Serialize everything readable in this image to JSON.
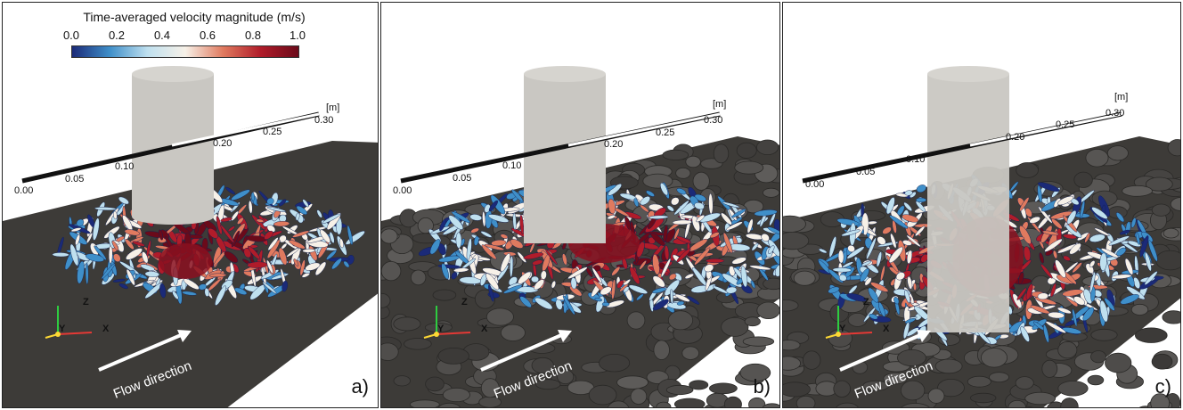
{
  "colorbar": {
    "title": "Time-averaged velocity magnitude (m/s)",
    "ticks": [
      "0.0",
      "0.2",
      "0.4",
      "0.6",
      "0.8",
      "1.0"
    ],
    "colors": [
      "#1b2a78",
      "#3f8fc9",
      "#bfe0ef",
      "#f7f1e8",
      "#e07a5f",
      "#b01c2a",
      "#6b0a1a"
    ]
  },
  "scale_bar": {
    "unit": "[m]",
    "ticks": [
      "0.00",
      "0.05",
      "0.10",
      "0.20",
      "0.25",
      "0.30"
    ]
  },
  "axes_triad": {
    "z": "Z",
    "y": "Y",
    "x": "X"
  },
  "flow_label": "Flow direction",
  "panels": [
    {
      "label": "a)",
      "bed": "flat"
    },
    {
      "label": "b)",
      "bed": "rough"
    },
    {
      "label": "c)",
      "bed": "rough"
    }
  ],
  "colors": {
    "bed": "#3d3b38",
    "pillar": "#c9c7c2",
    "vortex_dark": "#b01c2a",
    "vortex_light": "#8fc7e3"
  }
}
